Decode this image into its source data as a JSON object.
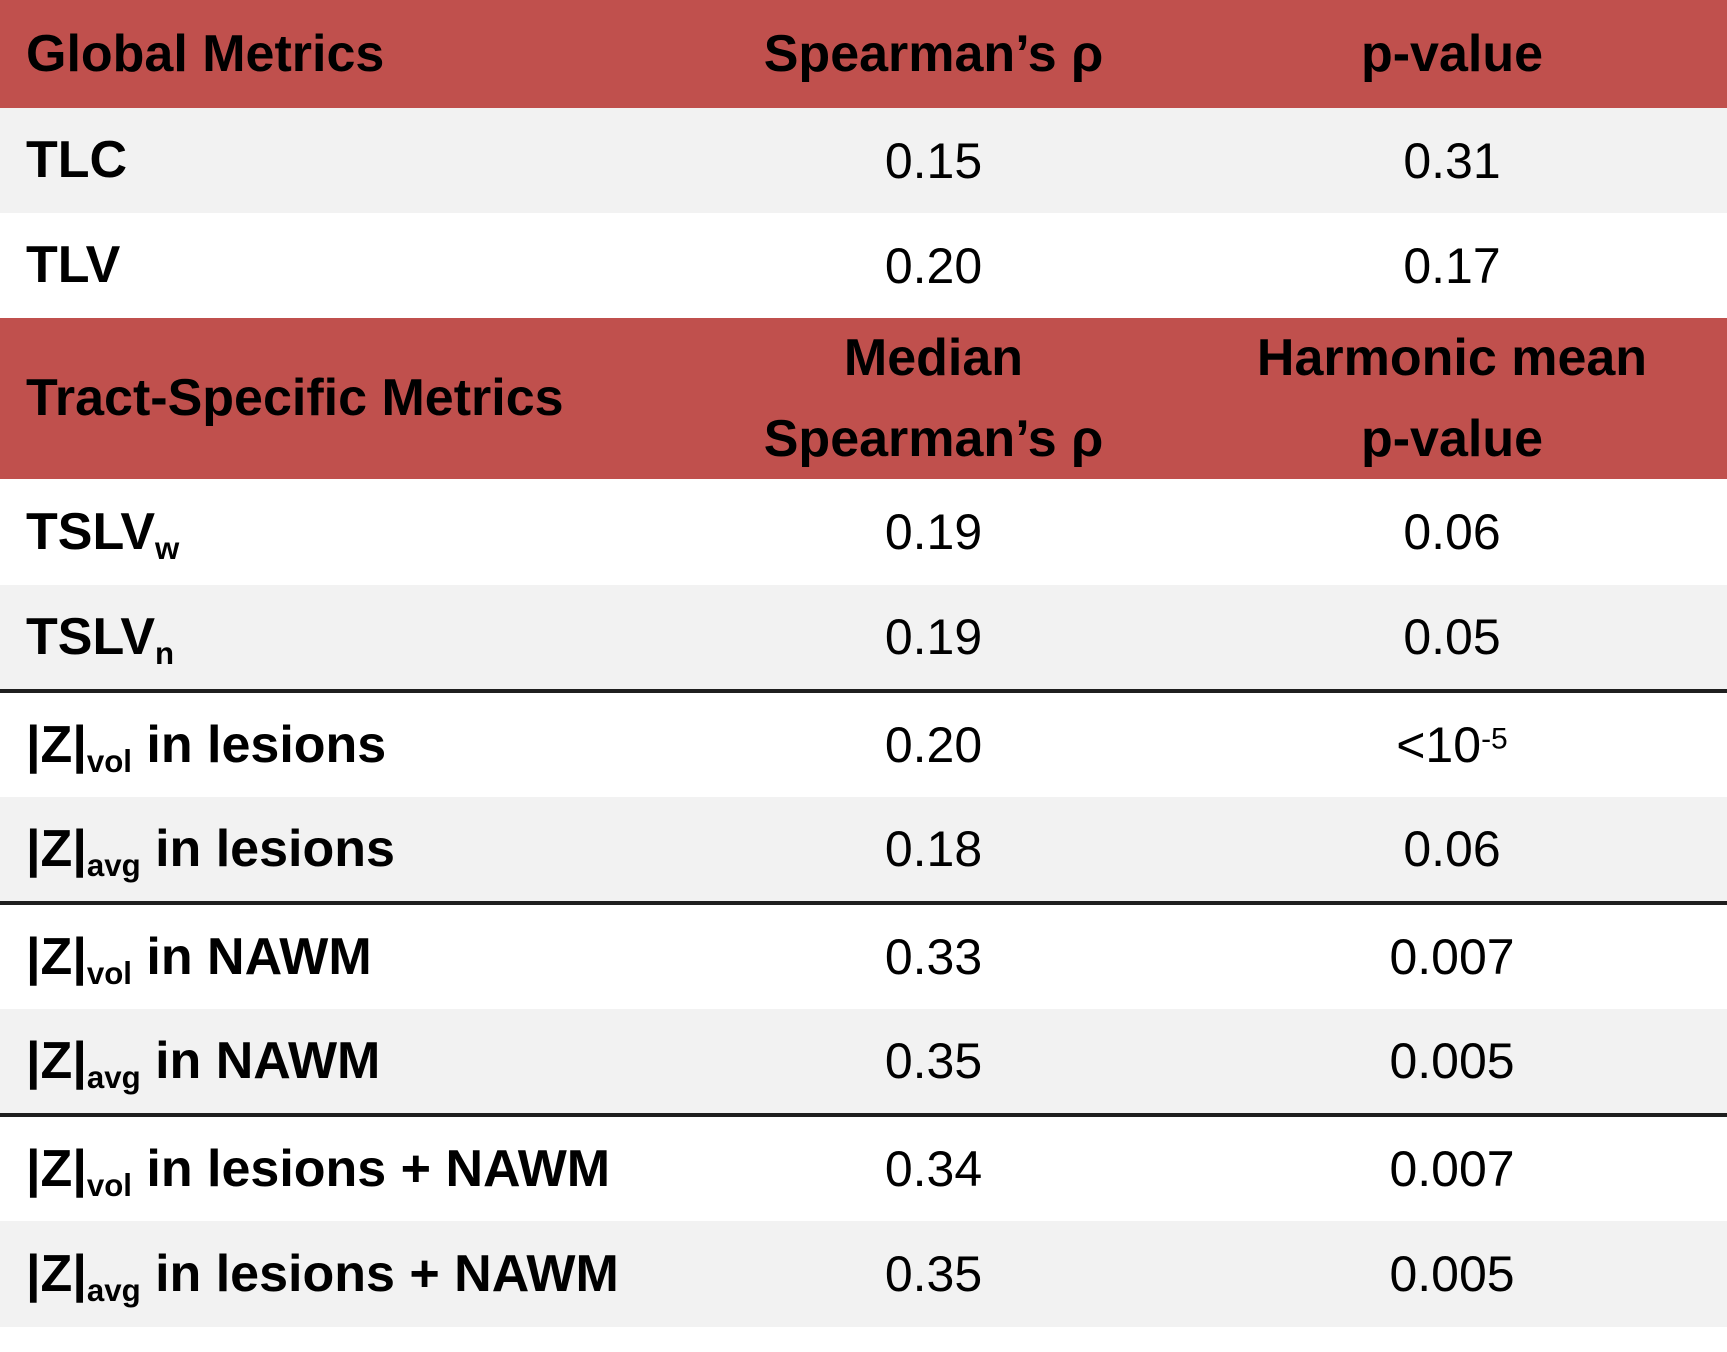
{
  "colors": {
    "header_bg": "#c0504d",
    "row_alt_bg": "#f2f2f2",
    "row_bg": "#ffffff",
    "divider": "#1f1f1f",
    "text": "#000000"
  },
  "table": {
    "global_header": {
      "metric": "Global Metrics",
      "rho": "Spearman’s ρ",
      "p": "p-value"
    },
    "global_rows": [
      {
        "label": "TLC",
        "rho": "0.15",
        "p": "0.31"
      },
      {
        "label": "TLV",
        "rho": "0.20",
        "p": "0.17"
      }
    ],
    "tract_header": {
      "metric": "Tract-Specific Metrics",
      "rho_line1": "Median",
      "rho_line2": "Spearman’s ρ",
      "p_line1": "Harmonic mean",
      "p_line2": "p-value"
    },
    "tract_rows": [
      {
        "label_pre": "TSLV",
        "label_sub": "w",
        "label_post": "",
        "rho": "0.19",
        "p": "0.06",
        "p_sup": ""
      },
      {
        "label_pre": "TSLV",
        "label_sub": "n",
        "label_post": "",
        "rho": "0.19",
        "p": "0.05",
        "p_sup": ""
      },
      {
        "label_pre": "|Z|",
        "label_sub": "vol",
        "label_post": " in lesions",
        "rho": "0.20",
        "p": "<10",
        "p_sup": "-5"
      },
      {
        "label_pre": "|Z|",
        "label_sub": "avg",
        "label_post": " in lesions",
        "rho": "0.18",
        "p": "0.06",
        "p_sup": ""
      },
      {
        "label_pre": "|Z|",
        "label_sub": "vol",
        "label_post": " in NAWM",
        "rho": "0.33",
        "p": "0.007",
        "p_sup": ""
      },
      {
        "label_pre": "|Z|",
        "label_sub": "avg",
        "label_post": " in NAWM",
        "rho": "0.35",
        "p": "0.005",
        "p_sup": ""
      },
      {
        "label_pre": "|Z|",
        "label_sub": "vol",
        "label_post": " in lesions + NAWM",
        "rho": "0.34",
        "p": "0.007",
        "p_sup": ""
      },
      {
        "label_pre": "|Z|",
        "label_sub": "avg",
        "label_post": " in lesions + NAWM",
        "rho": "0.35",
        "p": "0.005",
        "p_sup": ""
      }
    ]
  },
  "chart_data": {
    "type": "table",
    "sections": [
      {
        "header": [
          "Global Metrics",
          "Spearman’s ρ",
          "p-value"
        ],
        "rows": [
          [
            "TLC",
            "0.15",
            "0.31"
          ],
          [
            "TLV",
            "0.20",
            "0.17"
          ]
        ]
      },
      {
        "header": [
          "Tract-Specific Metrics",
          "Median Spearman’s ρ",
          "Harmonic mean p-value"
        ],
        "rows": [
          [
            "TSLV_w",
            "0.19",
            "0.06"
          ],
          [
            "TSLV_n",
            "0.19",
            "0.05"
          ],
          [
            "|Z|_vol in lesions",
            "0.20",
            "<10^-5"
          ],
          [
            "|Z|_avg in lesions",
            "0.18",
            "0.06"
          ],
          [
            "|Z|_vol in NAWM",
            "0.33",
            "0.007"
          ],
          [
            "|Z|_avg in NAWM",
            "0.35",
            "0.005"
          ],
          [
            "|Z|_vol in lesions + NAWM",
            "0.34",
            "0.007"
          ],
          [
            "|Z|_avg in lesions + NAWM",
            "0.35",
            "0.005"
          ]
        ]
      }
    ]
  }
}
